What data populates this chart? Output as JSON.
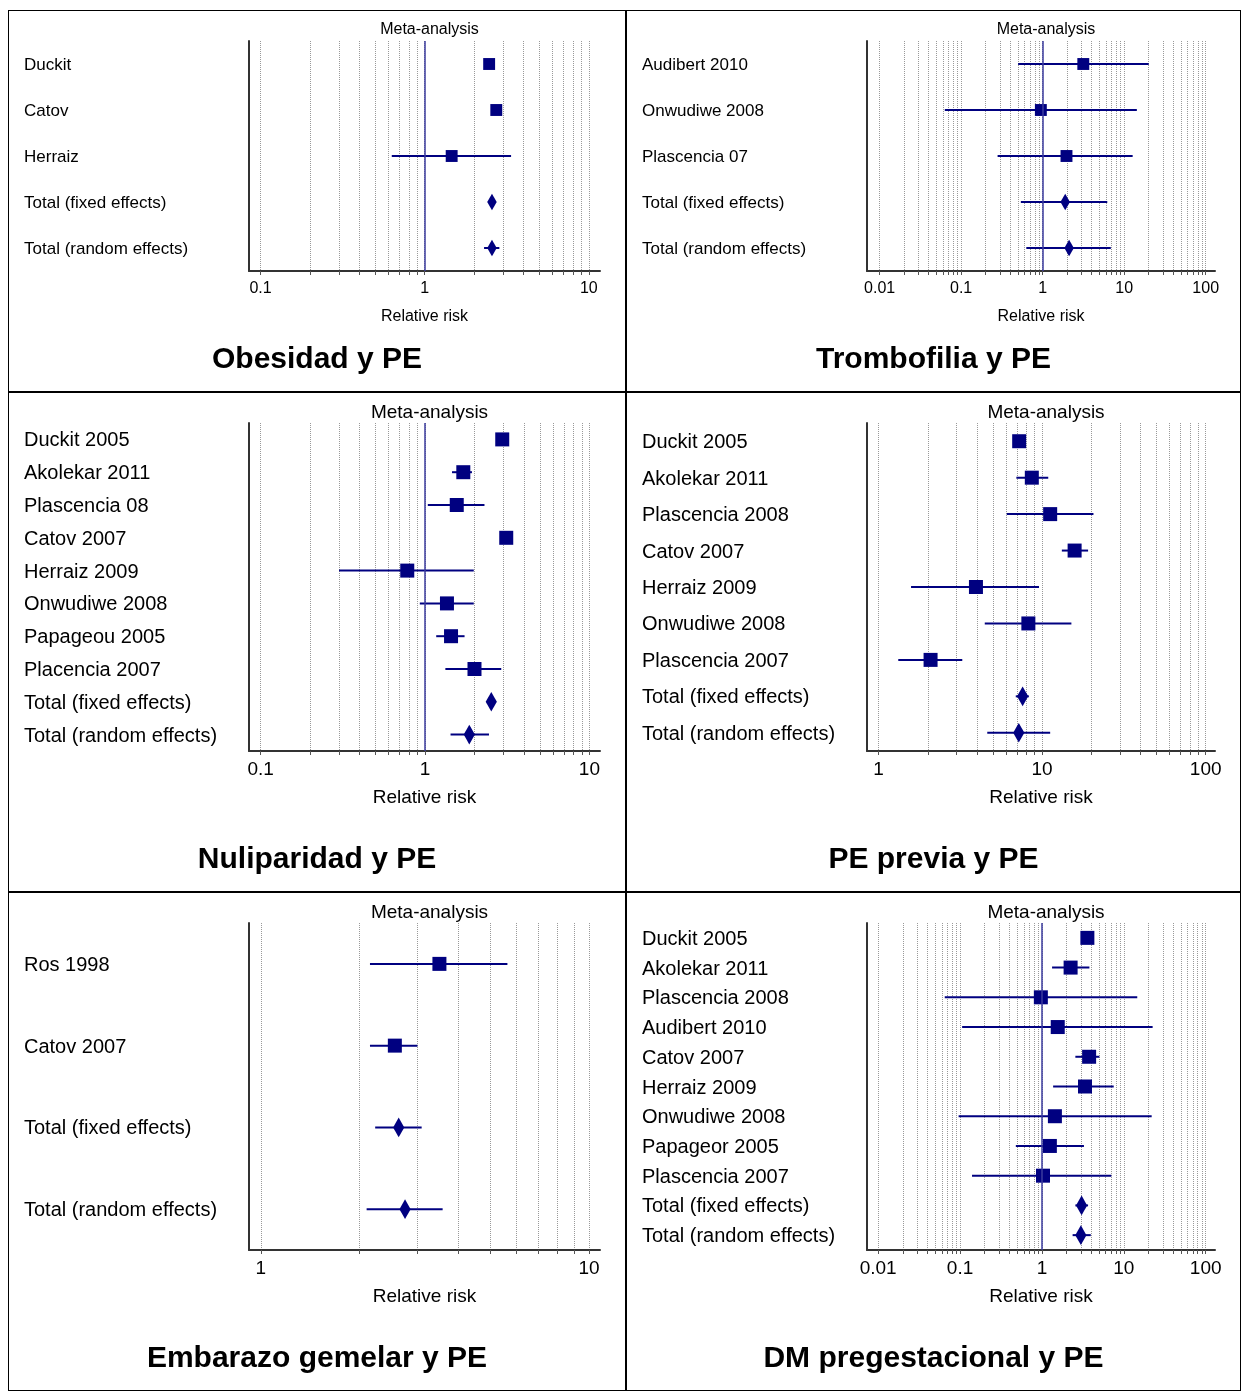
{
  "chart_data": [
    {
      "type": "scatter",
      "orientation": "horizontal",
      "title": "Obesidad y PE",
      "subtitle": "Meta-analysis",
      "xlabel": "Relative risk",
      "log": "x",
      "grid": "x",
      "categories": [
        "Duckit",
        "Catov",
        "Herraiz",
        "Total (fixed effects)",
        "Total (random effects)"
      ],
      "xlim": [
        0.085,
        11.7
      ],
      "xticks": [
        0.1,
        {
          "value": 0.2,
          "label": null
        },
        {
          "value": 0.3,
          "label": null
        },
        {
          "value": 0.4,
          "label": null
        },
        {
          "value": 0.5,
          "label": null
        },
        {
          "value": 0.6,
          "label": null
        },
        {
          "value": 0.7,
          "label": null
        },
        {
          "value": 0.8,
          "label": null
        },
        {
          "value": 0.9,
          "label": null
        },
        1,
        {
          "value": 2,
          "label": null
        },
        {
          "value": 3,
          "label": null
        },
        {
          "value": 4,
          "label": null
        },
        {
          "value": 5,
          "label": null
        },
        {
          "value": 6,
          "label": null
        },
        {
          "value": 7,
          "label": null
        },
        {
          "value": 8,
          "label": null
        },
        {
          "value": 9,
          "label": null
        },
        10
      ],
      "ref_lines": [
        {
          "axis": "x",
          "value": 1,
          "color": "#3b3b9e"
        }
      ],
      "series": [
        {
          "marker": "square",
          "color": "#000080",
          "values": [
            2.47,
            2.73,
            1.46,
            null,
            null
          ],
          "errors": [
            null,
            null,
            [
              0.63,
              3.36
            ],
            null,
            null
          ]
        },
        {
          "marker": "diamond",
          "color": "#000080",
          "values": [
            null,
            null,
            null,
            2.57,
            2.57
          ],
          "errors": [
            null,
            null,
            null,
            [
              2.45,
              2.7
            ],
            [
              2.3,
              2.85
            ]
          ]
        }
      ]
    },
    {
      "type": "scatter",
      "orientation": "horizontal",
      "title": "Trombofilia y PE",
      "subtitle": "Meta-analysis",
      "xlabel": "Relative risk",
      "log": "x",
      "grid": "x",
      "categories": [
        "Audibert 2010",
        "Onwudiwe 2008",
        "Plascencia 07",
        "Total (fixed effects)",
        "Total (random effects)"
      ],
      "xlim": [
        0.007,
        130
      ],
      "xticks": [
        0.01,
        {
          "value": 0.02,
          "label": null
        },
        {
          "value": 0.03,
          "label": null
        },
        {
          "value": 0.04,
          "label": null
        },
        {
          "value": 0.05,
          "label": null
        },
        {
          "value": 0.06,
          "label": null
        },
        {
          "value": 0.07,
          "label": null
        },
        {
          "value": 0.08,
          "label": null
        },
        {
          "value": 0.09,
          "label": null
        },
        0.1,
        {
          "value": 0.2,
          "label": null
        },
        {
          "value": 0.3,
          "label": null
        },
        {
          "value": 0.4,
          "label": null
        },
        {
          "value": 0.5,
          "label": null
        },
        {
          "value": 0.6,
          "label": null
        },
        {
          "value": 0.7,
          "label": null
        },
        {
          "value": 0.8,
          "label": null
        },
        {
          "value": 0.9,
          "label": null
        },
        1,
        {
          "value": 2,
          "label": null
        },
        {
          "value": 3,
          "label": null
        },
        {
          "value": 4,
          "label": null
        },
        {
          "value": 5,
          "label": null
        },
        {
          "value": 6,
          "label": null
        },
        {
          "value": 7,
          "label": null
        },
        {
          "value": 8,
          "label": null
        },
        {
          "value": 9,
          "label": null
        },
        10,
        {
          "value": 20,
          "label": null
        },
        {
          "value": 30,
          "label": null
        },
        {
          "value": 40,
          "label": null
        },
        {
          "value": 50,
          "label": null
        },
        {
          "value": 60,
          "label": null
        },
        {
          "value": 70,
          "label": null
        },
        {
          "value": 80,
          "label": null
        },
        {
          "value": 90,
          "label": null
        },
        100
      ],
      "ref_lines": [
        {
          "axis": "x",
          "value": 1,
          "color": "#3b3b9e"
        }
      ],
      "series": [
        {
          "marker": "square",
          "color": "#000080",
          "values": [
            3.15,
            0.95,
            1.96,
            null,
            null
          ],
          "errors": [
            [
              0.5,
              20
            ],
            [
              0.063,
              14.3
            ],
            [
              0.28,
              12.7
            ],
            null,
            null
          ]
        },
        {
          "marker": "diamond",
          "color": "#000080",
          "values": [
            null,
            null,
            null,
            1.89,
            2.11
          ],
          "errors": [
            null,
            null,
            null,
            [
              0.54,
              6.2
            ],
            [
              0.63,
              6.85
            ]
          ]
        }
      ]
    },
    {
      "type": "scatter",
      "orientation": "horizontal",
      "title": "Nuliparidad y PE",
      "subtitle": "Meta-analysis",
      "xlabel": "Relative risk",
      "log": "x",
      "grid": "x",
      "categories": [
        "Duckit 2005",
        "Akolekar 2011",
        "Plascencia 08",
        "Catov 2007",
        "Herraiz 2009",
        "Onwudiwe 2008",
        "Papageou 2005",
        "Placencia 2007",
        "Total (fixed effects)",
        "Total (random effects)"
      ],
      "xlim": [
        0.085,
        11.6
      ],
      "xticks": [
        0.1,
        {
          "value": 0.2,
          "label": null
        },
        {
          "value": 0.3,
          "label": null
        },
        {
          "value": 0.4,
          "label": null
        },
        {
          "value": 0.5,
          "label": null
        },
        {
          "value": 0.6,
          "label": null
        },
        {
          "value": 0.7,
          "label": null
        },
        {
          "value": 0.8,
          "label": null
        },
        {
          "value": 0.9,
          "label": null
        },
        1,
        {
          "value": 2,
          "label": null
        },
        {
          "value": 3,
          "label": null
        },
        {
          "value": 4,
          "label": null
        },
        {
          "value": 5,
          "label": null
        },
        {
          "value": 6,
          "label": null
        },
        {
          "value": 7,
          "label": null
        },
        {
          "value": 8,
          "label": null
        },
        {
          "value": 9,
          "label": null
        },
        10
      ],
      "ref_lines": [
        {
          "axis": "x",
          "value": 1,
          "color": "#3b3b9e"
        }
      ],
      "series": [
        {
          "marker": "square",
          "color": "#000080",
          "values": [
            2.95,
            1.71,
            1.56,
            3.12,
            0.78,
            1.36,
            1.44,
            2.0,
            null,
            null
          ],
          "errors": [
            null,
            [
              1.46,
              1.93
            ],
            [
              1.04,
              2.3
            ],
            null,
            [
              0.3,
              1.98
            ],
            [
              0.93,
              1.98
            ],
            [
              1.17,
              1.74
            ],
            [
              1.33,
              2.91
            ],
            null,
            null
          ]
        },
        {
          "marker": "diamond",
          "color": "#000080",
          "values": [
            null,
            null,
            null,
            null,
            null,
            null,
            null,
            null,
            2.53,
            1.86
          ],
          "errors": [
            null,
            null,
            null,
            null,
            null,
            null,
            null,
            null,
            [
              2.41,
              2.68
            ],
            [
              1.43,
              2.45
            ]
          ]
        }
      ]
    },
    {
      "type": "scatter",
      "orientation": "horizontal",
      "title": "PE previa y PE",
      "subtitle": "Meta-analysis",
      "xlabel": "Relative risk",
      "log": "x",
      "grid": "x",
      "categories": [
        "Duckit 2005",
        "Akolekar 2011",
        "Plascencia 2008",
        "Catov 2007",
        "Herraiz 2009",
        "Onwudiwe 2008",
        "Plascencia 2007",
        "Total (fixed effects)",
        "Total (random effects)"
      ],
      "xlim": [
        0.85,
        114
      ],
      "xticks": [
        1,
        {
          "value": 2,
          "label": null
        },
        {
          "value": 3,
          "label": null
        },
        {
          "value": 4,
          "label": null
        },
        {
          "value": 5,
          "label": null
        },
        {
          "value": 6,
          "label": null
        },
        {
          "value": 7,
          "label": null
        },
        {
          "value": 8,
          "label": null
        },
        {
          "value": 9,
          "label": null
        },
        10,
        {
          "value": 20,
          "label": null
        },
        {
          "value": 30,
          "label": null
        },
        {
          "value": 40,
          "label": null
        },
        {
          "value": 50,
          "label": null
        },
        {
          "value": 60,
          "label": null
        },
        {
          "value": 70,
          "label": null
        },
        {
          "value": 80,
          "label": null
        },
        {
          "value": 90,
          "label": null
        },
        100
      ],
      "series": [
        {
          "marker": "square",
          "color": "#000080",
          "values": [
            7.24,
            8.65,
            11.2,
            15.8,
            3.94,
            8.24,
            2.08,
            null,
            null
          ],
          "errors": [
            null,
            [
              6.96,
              10.9
            ],
            [
              6.08,
              20.6
            ],
            [
              13.2,
              19.1
            ],
            [
              1.58,
              9.57
            ],
            [
              4.46,
              15.1
            ],
            [
              1.32,
              3.25
            ],
            null,
            null
          ]
        },
        {
          "marker": "diamond",
          "color": "#000080",
          "values": [
            null,
            null,
            null,
            null,
            null,
            null,
            null,
            7.6,
            7.2
          ],
          "errors": [
            null,
            null,
            null,
            null,
            null,
            null,
            null,
            [
              6.9,
              8.3
            ],
            [
              4.62,
              11.2
            ]
          ]
        }
      ]
    },
    {
      "type": "scatter",
      "orientation": "horizontal",
      "title": "Embarazo gemelar y PE",
      "subtitle": "Meta-analysis",
      "xlabel": "Relative risk",
      "log": "x",
      "grid": "x",
      "categories": [
        "Ros 1998",
        "Catov 2007",
        "Total (fixed effects)",
        "Total (random effects)"
      ],
      "xlim": [
        0.92,
        10.8
      ],
      "xticks": [
        1,
        {
          "value": 2,
          "label": null
        },
        {
          "value": 3,
          "label": null
        },
        {
          "value": 4,
          "label": null
        },
        {
          "value": 5,
          "label": null
        },
        {
          "value": 6,
          "label": null
        },
        {
          "value": 7,
          "label": null
        },
        {
          "value": 8,
          "label": null
        },
        {
          "value": 9,
          "label": null
        },
        10
      ],
      "series": [
        {
          "marker": "square",
          "color": "#000080",
          "values": [
            3.5,
            2.56,
            null,
            null
          ],
          "errors": [
            [
              2.15,
              5.64
            ],
            [
              2.15,
              3.0
            ],
            null,
            null
          ]
        },
        {
          "marker": "diamond",
          "color": "#000080",
          "values": [
            null,
            null,
            2.63,
            2.75
          ],
          "errors": [
            null,
            null,
            [
              2.23,
              3.09
            ],
            [
              2.1,
              3.58
            ]
          ]
        }
      ]
    },
    {
      "type": "scatter",
      "orientation": "horizontal",
      "title": "DM pregestacional y PE",
      "subtitle": "Meta-analysis",
      "xlabel": "Relative risk",
      "log": "x",
      "grid": "x",
      "categories": [
        "Duckit 2005",
        "Akolekar 2011",
        "Plascencia 2008",
        "Audibert 2010",
        "Catov 2007",
        "Herraiz 2009",
        "Onwudiwe 2008",
        "Papageor 2005",
        "Plascencia 2007",
        "Total (fixed effects)",
        "Total (random effects)"
      ],
      "xlim": [
        0.0073,
        130
      ],
      "xticks": [
        0.01,
        {
          "value": 0.02,
          "label": null
        },
        {
          "value": 0.03,
          "label": null
        },
        {
          "value": 0.04,
          "label": null
        },
        {
          "value": 0.05,
          "label": null
        },
        {
          "value": 0.06,
          "label": null
        },
        {
          "value": 0.07,
          "label": null
        },
        {
          "value": 0.08,
          "label": null
        },
        {
          "value": 0.09,
          "label": null
        },
        0.1,
        {
          "value": 0.2,
          "label": null
        },
        {
          "value": 0.3,
          "label": null
        },
        {
          "value": 0.4,
          "label": null
        },
        {
          "value": 0.5,
          "label": null
        },
        {
          "value": 0.6,
          "label": null
        },
        {
          "value": 0.7,
          "label": null
        },
        {
          "value": 0.8,
          "label": null
        },
        {
          "value": 0.9,
          "label": null
        },
        1,
        {
          "value": 2,
          "label": null
        },
        {
          "value": 3,
          "label": null
        },
        {
          "value": 4,
          "label": null
        },
        {
          "value": 5,
          "label": null
        },
        {
          "value": 6,
          "label": null
        },
        {
          "value": 7,
          "label": null
        },
        {
          "value": 8,
          "label": null
        },
        {
          "value": 9,
          "label": null
        },
        10,
        {
          "value": 20,
          "label": null
        },
        {
          "value": 30,
          "label": null
        },
        {
          "value": 40,
          "label": null
        },
        {
          "value": 50,
          "label": null
        },
        {
          "value": 60,
          "label": null
        },
        {
          "value": 70,
          "label": null
        },
        {
          "value": 80,
          "label": null
        },
        {
          "value": 90,
          "label": null
        },
        100
      ],
      "ref_lines": [
        {
          "axis": "x",
          "value": 1,
          "color": "#3b3b9e"
        }
      ],
      "series": [
        {
          "marker": "square",
          "color": "#000080",
          "values": [
            3.59,
            2.24,
            0.97,
            1.56,
            3.77,
            3.36,
            1.44,
            1.25,
            1.03,
            null,
            null
          ],
          "errors": [
            null,
            [
              1.33,
              3.8
            ],
            [
              0.065,
              14.6
            ],
            [
              0.106,
              22.5
            ],
            [
              2.56,
              5.03
            ],
            [
              1.37,
              7.53
            ],
            [
              0.096,
              21.9
            ],
            [
              0.48,
              3.26
            ],
            [
              0.14,
              7.04
            ],
            null,
            null
          ]
        },
        {
          "marker": "diamond",
          "color": "#000080",
          "values": [
            null,
            null,
            null,
            null,
            null,
            null,
            null,
            null,
            null,
            3.05,
            2.99
          ],
          "errors": [
            null,
            null,
            null,
            null,
            null,
            null,
            null,
            null,
            null,
            [
              2.56,
              3.66
            ],
            [
              2.37,
              3.95
            ]
          ]
        }
      ]
    }
  ]
}
